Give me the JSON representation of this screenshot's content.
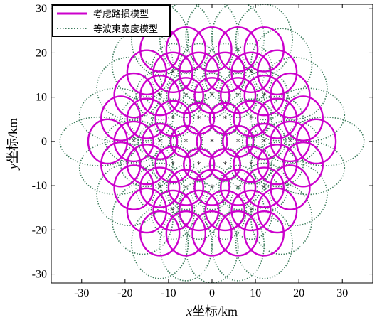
{
  "chart_data": {
    "type": "scatter",
    "xlabel_var": "x",
    "xlabel_rest": "坐标/km",
    "ylabel_var": "y",
    "ylabel_rest": "坐标/km",
    "xlim": [
      -37,
      37
    ],
    "ylim": [
      -32,
      31
    ],
    "xticks": [
      -30,
      -20,
      -10,
      0,
      10,
      20,
      30
    ],
    "yticks": [
      -30,
      -20,
      -10,
      0,
      10,
      20,
      30
    ],
    "grid": false,
    "legend_position": "top-left",
    "series": [
      {
        "name": "考虑路损模型",
        "color": "#cc00cc",
        "line": "solid",
        "cells": [
          {
            "cx": 0,
            "cy": 0,
            "rx": 3.5,
            "ry": 3.5
          },
          {
            "cx": 6,
            "cy": 0,
            "rx": 3.5,
            "ry": 3.5
          },
          {
            "cx": -6,
            "cy": 0,
            "rx": 3.5,
            "ry": 3.5
          },
          {
            "cx": 3,
            "cy": 5.2,
            "rx": 3.5,
            "ry": 3.5
          },
          {
            "cx": -3,
            "cy": 5.2,
            "rx": 3.5,
            "ry": 3.5
          },
          {
            "cx": 3,
            "cy": -5.2,
            "rx": 3.5,
            "ry": 3.5
          },
          {
            "cx": -3,
            "cy": -5.2,
            "rx": 3.5,
            "ry": 3.5
          },
          {
            "cx": 12,
            "cy": 0,
            "rx": 4,
            "ry": 4
          },
          {
            "cx": -12,
            "cy": 0,
            "rx": 4,
            "ry": 4
          },
          {
            "cx": 6,
            "cy": 10.4,
            "rx": 4,
            "ry": 4
          },
          {
            "cx": -6,
            "cy": 10.4,
            "rx": 4,
            "ry": 4
          },
          {
            "cx": 6,
            "cy": -10.4,
            "rx": 4,
            "ry": 4
          },
          {
            "cx": -6,
            "cy": -10.4,
            "rx": 4,
            "ry": 4
          },
          {
            "cx": 0,
            "cy": 10.4,
            "rx": 4,
            "ry": 4
          },
          {
            "cx": 0,
            "cy": -10.4,
            "rx": 4,
            "ry": 4
          },
          {
            "cx": 9,
            "cy": 5.2,
            "rx": 4,
            "ry": 4
          },
          {
            "cx": -9,
            "cy": 5.2,
            "rx": 4,
            "ry": 4
          },
          {
            "cx": 9,
            "cy": -5.2,
            "rx": 4,
            "ry": 4
          },
          {
            "cx": -9,
            "cy": -5.2,
            "rx": 4,
            "ry": 4
          },
          {
            "cx": 18,
            "cy": 0,
            "rx": 4.5,
            "ry": 4.5
          },
          {
            "cx": -18,
            "cy": 0,
            "rx": 4.5,
            "ry": 4.5
          },
          {
            "cx": 15,
            "cy": 5.2,
            "rx": 4.5,
            "ry": 4.5
          },
          {
            "cx": -15,
            "cy": 5.2,
            "rx": 4.5,
            "ry": 4.5
          },
          {
            "cx": 15,
            "cy": -5.2,
            "rx": 4.5,
            "ry": 4.5
          },
          {
            "cx": -15,
            "cy": -5.2,
            "rx": 4.5,
            "ry": 4.5
          },
          {
            "cx": 12,
            "cy": 10.4,
            "rx": 4.5,
            "ry": 4.5
          },
          {
            "cx": -12,
            "cy": 10.4,
            "rx": 4.5,
            "ry": 4.5
          },
          {
            "cx": 12,
            "cy": -10.4,
            "rx": 4.5,
            "ry": 4.5
          },
          {
            "cx": -12,
            "cy": -10.4,
            "rx": 4.5,
            "ry": 4.5
          },
          {
            "cx": 9,
            "cy": 15.6,
            "rx": 4.5,
            "ry": 4.5
          },
          {
            "cx": -9,
            "cy": 15.6,
            "rx": 4.5,
            "ry": 4.5
          },
          {
            "cx": 9,
            "cy": -15.6,
            "rx": 4.5,
            "ry": 4.5
          },
          {
            "cx": -9,
            "cy": -15.6,
            "rx": 4.5,
            "ry": 4.5
          },
          {
            "cx": 3,
            "cy": 15.6,
            "rx": 4.5,
            "ry": 4.5
          },
          {
            "cx": -3,
            "cy": 15.6,
            "rx": 4.5,
            "ry": 4.5
          },
          {
            "cx": 3,
            "cy": -15.6,
            "rx": 4.5,
            "ry": 4.5
          },
          {
            "cx": -3,
            "cy": -15.6,
            "rx": 4.5,
            "ry": 4.5
          },
          {
            "cx": 24,
            "cy": 0,
            "rx": 4.5,
            "ry": 5
          },
          {
            "cx": -24,
            "cy": 0,
            "rx": 4.5,
            "ry": 5
          },
          {
            "cx": 21,
            "cy": 5.2,
            "rx": 4.5,
            "ry": 5
          },
          {
            "cx": -21,
            "cy": 5.2,
            "rx": 4.5,
            "ry": 5
          },
          {
            "cx": 21,
            "cy": -5.2,
            "rx": 4.5,
            "ry": 5
          },
          {
            "cx": -21,
            "cy": -5.2,
            "rx": 4.5,
            "ry": 5
          },
          {
            "cx": 18,
            "cy": 10.4,
            "rx": 4.5,
            "ry": 5
          },
          {
            "cx": -18,
            "cy": 10.4,
            "rx": 4.5,
            "ry": 5
          },
          {
            "cx": 18,
            "cy": -10.4,
            "rx": 4.5,
            "ry": 5
          },
          {
            "cx": -18,
            "cy": -10.4,
            "rx": 4.5,
            "ry": 5
          },
          {
            "cx": 15,
            "cy": 15.6,
            "rx": 4.5,
            "ry": 5
          },
          {
            "cx": -15,
            "cy": 15.6,
            "rx": 4.5,
            "ry": 5
          },
          {
            "cx": 15,
            "cy": -15.6,
            "rx": 4.5,
            "ry": 5
          },
          {
            "cx": -15,
            "cy": -15.6,
            "rx": 4.5,
            "ry": 5
          },
          {
            "cx": 12,
            "cy": 20.8,
            "rx": 4.5,
            "ry": 5
          },
          {
            "cx": -12,
            "cy": 20.8,
            "rx": 4.5,
            "ry": 5
          },
          {
            "cx": 12,
            "cy": -20.8,
            "rx": 4.5,
            "ry": 5
          },
          {
            "cx": -12,
            "cy": -20.8,
            "rx": 4.5,
            "ry": 5
          },
          {
            "cx": 6,
            "cy": 20.8,
            "rx": 4.5,
            "ry": 5
          },
          {
            "cx": -6,
            "cy": 20.8,
            "rx": 4.5,
            "ry": 5
          },
          {
            "cx": 6,
            "cy": -20.8,
            "rx": 4.5,
            "ry": 5
          },
          {
            "cx": -6,
            "cy": -20.8,
            "rx": 4.5,
            "ry": 5
          },
          {
            "cx": 0,
            "cy": 20.8,
            "rx": 4.5,
            "ry": 5
          },
          {
            "cx": 0,
            "cy": -20.8,
            "rx": 4.5,
            "ry": 5
          }
        ]
      },
      {
        "name": "等波束宽度模型",
        "color": "#3a7a5a",
        "line": "dotted",
        "cells": [
          {
            "cx": 0,
            "cy": 0,
            "rx": 3.5,
            "ry": 3.5
          },
          {
            "cx": 6,
            "cy": 0,
            "rx": 3.8,
            "ry": 3.6
          },
          {
            "cx": -6,
            "cy": 0,
            "rx": 3.8,
            "ry": 3.6
          },
          {
            "cx": 3,
            "cy": 5.2,
            "rx": 3.6,
            "ry": 3.8
          },
          {
            "cx": -3,
            "cy": 5.2,
            "rx": 3.6,
            "ry": 3.8
          },
          {
            "cx": 3,
            "cy": -5.2,
            "rx": 3.6,
            "ry": 3.8
          },
          {
            "cx": -3,
            "cy": -5.2,
            "rx": 3.6,
            "ry": 3.8
          },
          {
            "cx": 12,
            "cy": 0,
            "rx": 5,
            "ry": 4.2
          },
          {
            "cx": -12,
            "cy": 0,
            "rx": 5,
            "ry": 4.2
          },
          {
            "cx": 6,
            "cy": 10.4,
            "rx": 4.4,
            "ry": 5
          },
          {
            "cx": -6,
            "cy": 10.4,
            "rx": 4.4,
            "ry": 5
          },
          {
            "cx": 6,
            "cy": -10.4,
            "rx": 4.4,
            "ry": 5
          },
          {
            "cx": -6,
            "cy": -10.4,
            "rx": 4.4,
            "ry": 5
          },
          {
            "cx": 0,
            "cy": 10.4,
            "rx": 4.2,
            "ry": 5
          },
          {
            "cx": 0,
            "cy": -10.4,
            "rx": 4.2,
            "ry": 5
          },
          {
            "cx": 9,
            "cy": 5.2,
            "rx": 4.8,
            "ry": 4.4
          },
          {
            "cx": -9,
            "cy": 5.2,
            "rx": 4.8,
            "ry": 4.4
          },
          {
            "cx": 9,
            "cy": -5.2,
            "rx": 4.8,
            "ry": 4.4
          },
          {
            "cx": -9,
            "cy": -5.2,
            "rx": 4.8,
            "ry": 4.4
          },
          {
            "cx": 18,
            "cy": 0,
            "rx": 6.5,
            "ry": 4.8
          },
          {
            "cx": -18,
            "cy": 0,
            "rx": 6.5,
            "ry": 4.8
          },
          {
            "cx": 15,
            "cy": 5.2,
            "rx": 6,
            "ry": 5
          },
          {
            "cx": -15,
            "cy": 5.2,
            "rx": 6,
            "ry": 5
          },
          {
            "cx": 15,
            "cy": -5.2,
            "rx": 6,
            "ry": 5
          },
          {
            "cx": -15,
            "cy": -5.2,
            "rx": 6,
            "ry": 5
          },
          {
            "cx": 12,
            "cy": 10.4,
            "rx": 5.5,
            "ry": 5.5
          },
          {
            "cx": -12,
            "cy": 10.4,
            "rx": 5.5,
            "ry": 5.5
          },
          {
            "cx": 12,
            "cy": -10.4,
            "rx": 5.5,
            "ry": 5.5
          },
          {
            "cx": -12,
            "cy": -10.4,
            "rx": 5.5,
            "ry": 5.5
          },
          {
            "cx": 9,
            "cy": 15.6,
            "rx": 5,
            "ry": 6.5
          },
          {
            "cx": -9,
            "cy": 15.6,
            "rx": 5,
            "ry": 6.5
          },
          {
            "cx": 9,
            "cy": -15.6,
            "rx": 5,
            "ry": 6.5
          },
          {
            "cx": -9,
            "cy": -15.6,
            "rx": 5,
            "ry": 6.5
          },
          {
            "cx": 3,
            "cy": 15.6,
            "rx": 4.8,
            "ry": 6.5
          },
          {
            "cx": -3,
            "cy": 15.6,
            "rx": 4.8,
            "ry": 6.5
          },
          {
            "cx": 3,
            "cy": -15.6,
            "rx": 4.8,
            "ry": 6.5
          },
          {
            "cx": -3,
            "cy": -15.6,
            "rx": 4.8,
            "ry": 6.5
          },
          {
            "cx": 26,
            "cy": 0,
            "rx": 9,
            "ry": 5.5
          },
          {
            "cx": -26,
            "cy": 0,
            "rx": 9,
            "ry": 5.5
          },
          {
            "cx": 22,
            "cy": 6,
            "rx": 8.5,
            "ry": 6
          },
          {
            "cx": -22,
            "cy": 6,
            "rx": 8.5,
            "ry": 6
          },
          {
            "cx": 22,
            "cy": -6,
            "rx": 8.5,
            "ry": 6
          },
          {
            "cx": -22,
            "cy": -6,
            "rx": 8.5,
            "ry": 6
          },
          {
            "cx": 19,
            "cy": 12,
            "rx": 7.5,
            "ry": 7
          },
          {
            "cx": -19,
            "cy": 12,
            "rx": 7.5,
            "ry": 7
          },
          {
            "cx": 19,
            "cy": -12,
            "rx": 7.5,
            "ry": 7
          },
          {
            "cx": -19,
            "cy": -12,
            "rx": 7.5,
            "ry": 7
          },
          {
            "cx": 16,
            "cy": 17.5,
            "rx": 7,
            "ry": 8
          },
          {
            "cx": -16,
            "cy": 17.5,
            "rx": 7,
            "ry": 8
          },
          {
            "cx": 16,
            "cy": -17.5,
            "rx": 7,
            "ry": 8
          },
          {
            "cx": -16,
            "cy": -17.5,
            "rx": 7,
            "ry": 8
          },
          {
            "cx": 12,
            "cy": 23,
            "rx": 6.5,
            "ry": 8
          },
          {
            "cx": -12,
            "cy": 23,
            "rx": 6.5,
            "ry": 8
          },
          {
            "cx": 12,
            "cy": -23,
            "rx": 6.5,
            "ry": 8
          },
          {
            "cx": -12,
            "cy": -23,
            "rx": 6.5,
            "ry": 8
          },
          {
            "cx": 6,
            "cy": 23.5,
            "rx": 6,
            "ry": 8
          },
          {
            "cx": -6,
            "cy": 23.5,
            "rx": 6,
            "ry": 8
          },
          {
            "cx": 6,
            "cy": -23.5,
            "rx": 6,
            "ry": 8
          },
          {
            "cx": -6,
            "cy": -23.5,
            "rx": 6,
            "ry": 8
          },
          {
            "cx": 0,
            "cy": 24,
            "rx": 6,
            "ry": 8
          },
          {
            "cx": 0,
            "cy": -24,
            "rx": 6,
            "ry": 8
          }
        ]
      }
    ],
    "center_markers": {
      "symbol": "*",
      "points": [
        [
          0,
          0
        ],
        [
          6,
          0
        ],
        [
          -6,
          0
        ],
        [
          3,
          5.2
        ],
        [
          -3,
          5.2
        ],
        [
          3,
          -5.2
        ],
        [
          -3,
          -5.2
        ],
        [
          12,
          0
        ],
        [
          -12,
          0
        ],
        [
          6,
          10.4
        ],
        [
          -6,
          10.4
        ],
        [
          6,
          -10.4
        ],
        [
          -6,
          -10.4
        ],
        [
          0,
          10.4
        ],
        [
          0,
          -10.4
        ],
        [
          9,
          5.2
        ],
        [
          -9,
          5.2
        ],
        [
          9,
          -5.2
        ],
        [
          -9,
          -5.2
        ],
        [
          18,
          0
        ],
        [
          -18,
          0
        ],
        [
          12,
          10.4
        ],
        [
          -12,
          10.4
        ],
        [
          12,
          -10.4
        ],
        [
          -12,
          -10.4
        ],
        [
          9,
          15.6
        ],
        [
          -9,
          15.6
        ],
        [
          9,
          -15.6
        ],
        [
          -9,
          -15.6
        ]
      ]
    }
  }
}
